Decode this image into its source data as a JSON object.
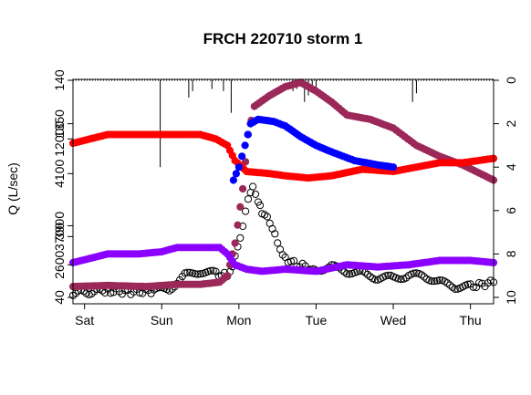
{
  "chart_data": {
    "type": "scatter",
    "title": "FRCH 220710 storm 1",
    "ylabel": "Q (L/sec)",
    "x_tick_labels": [
      "Sat",
      "Sun",
      "Mon",
      "Tue",
      "Wed",
      "Thu"
    ],
    "x_tick_days": [
      0,
      1,
      2,
      3,
      4,
      5
    ],
    "xlim_days": [
      -0.15,
      5.3
    ],
    "left_y_tick_labels": [
      "40",
      "2600",
      "3700",
      "3900",
      "4100",
      "12000",
      "1350",
      "140"
    ],
    "left_y_tick_heights": [
      0,
      1.5,
      2.8,
      3.3,
      5.7,
      7.3,
      8.0,
      10
    ],
    "left_ylim": [
      0,
      10
    ],
    "right_axis_label": "",
    "right_y_tick_labels": [
      "0",
      "2",
      "4",
      "6",
      "8",
      "10"
    ],
    "right_ylim": [
      10,
      0
    ],
    "grid": false,
    "series": [
      {
        "color": "#000000",
        "filled": false,
        "points": [
          [
            -0.15,
            0.2
          ],
          [
            0.3,
            0.3
          ],
          [
            0.6,
            0.25
          ],
          [
            0.9,
            0.3
          ],
          [
            1.1,
            0.4
          ],
          [
            1.3,
            1.0
          ],
          [
            1.5,
            1.2
          ],
          [
            1.7,
            1.1
          ],
          [
            1.85,
            1.0
          ],
          [
            1.95,
            1.8
          ],
          [
            2.05,
            3.2
          ],
          [
            2.12,
            4.5
          ],
          [
            2.18,
            5.0
          ],
          [
            2.25,
            4.5
          ],
          [
            2.3,
            3.8
          ],
          [
            2.4,
            3.5
          ],
          [
            2.5,
            2.6
          ],
          [
            2.6,
            1.8
          ],
          [
            2.75,
            1.5
          ],
          [
            2.9,
            1.4
          ],
          [
            3.0,
            1.3
          ],
          [
            3.2,
            1.4
          ],
          [
            3.4,
            1.2
          ],
          [
            3.6,
            1.1
          ],
          [
            3.8,
            0.9
          ],
          [
            4.0,
            0.9
          ],
          [
            4.2,
            1.0
          ],
          [
            4.4,
            1.0
          ],
          [
            4.6,
            0.7
          ],
          [
            4.8,
            0.5
          ],
          [
            5.0,
            0.5
          ],
          [
            5.3,
            0.7
          ]
        ]
      },
      {
        "color": "#9b2858",
        "filled": true,
        "points": [
          [
            -0.15,
            0.5
          ],
          [
            0.3,
            0.55
          ],
          [
            0.8,
            0.5
          ],
          [
            1.2,
            0.6
          ],
          [
            1.5,
            0.6
          ],
          [
            1.75,
            0.7
          ],
          [
            1.85,
            1.0
          ],
          [
            1.95,
            2.5
          ],
          [
            2.05,
            5.0
          ],
          [
            2.12,
            7.5
          ],
          [
            2.2,
            8.8
          ],
          [
            2.4,
            9.3
          ],
          [
            2.6,
            9.7
          ],
          [
            2.8,
            9.9
          ],
          [
            3.0,
            9.5
          ],
          [
            3.2,
            9.0
          ],
          [
            3.4,
            8.4
          ],
          [
            3.7,
            8.2
          ],
          [
            4.0,
            7.8
          ],
          [
            4.3,
            7.0
          ],
          [
            4.6,
            6.5
          ],
          [
            4.9,
            6.1
          ],
          [
            5.3,
            5.4
          ]
        ]
      },
      {
        "color": "#ff0000",
        "filled": true,
        "points": [
          [
            -0.15,
            7.1
          ],
          [
            0.3,
            7.5
          ],
          [
            0.7,
            7.5
          ],
          [
            1.2,
            7.5
          ],
          [
            1.5,
            7.5
          ],
          [
            1.7,
            7.3
          ],
          [
            1.85,
            7.0
          ],
          [
            1.95,
            6.3
          ],
          [
            2.1,
            5.8
          ],
          [
            2.4,
            5.7
          ],
          [
            2.6,
            5.6
          ],
          [
            2.9,
            5.5
          ],
          [
            3.2,
            5.6
          ],
          [
            3.6,
            5.9
          ],
          [
            4.0,
            5.8
          ],
          [
            4.3,
            6.0
          ],
          [
            4.6,
            6.2
          ],
          [
            4.9,
            6.2
          ],
          [
            5.3,
            6.4
          ]
        ]
      },
      {
        "color": "#0000ff",
        "filled": true,
        "points": [
          [
            1.93,
            5.4
          ],
          [
            2.0,
            6.0
          ],
          [
            2.08,
            7.0
          ],
          [
            2.15,
            8.0
          ],
          [
            2.25,
            8.2
          ],
          [
            2.45,
            8.1
          ],
          [
            2.6,
            7.9
          ],
          [
            2.8,
            7.4
          ],
          [
            3.0,
            7.0
          ],
          [
            3.2,
            6.7
          ],
          [
            3.5,
            6.3
          ],
          [
            3.8,
            6.1
          ],
          [
            4.0,
            6.0
          ]
        ]
      },
      {
        "color": "#8b00ff",
        "filled": true,
        "points": [
          [
            -0.15,
            1.6
          ],
          [
            0.3,
            2.0
          ],
          [
            0.7,
            2.0
          ],
          [
            1.0,
            2.1
          ],
          [
            1.2,
            2.3
          ],
          [
            1.5,
            2.3
          ],
          [
            1.75,
            2.3
          ],
          [
            1.85,
            2.0
          ],
          [
            1.95,
            1.5
          ],
          [
            2.1,
            1.3
          ],
          [
            2.3,
            1.2
          ],
          [
            2.6,
            1.3
          ],
          [
            3.0,
            1.2
          ],
          [
            3.4,
            1.5
          ],
          [
            3.8,
            1.4
          ],
          [
            4.2,
            1.5
          ],
          [
            4.6,
            1.7
          ],
          [
            5.0,
            1.7
          ],
          [
            5.3,
            1.6
          ]
        ]
      }
    ],
    "precip_bars": [
      [
        0.98,
        4.0
      ],
      [
        1.35,
        0.8
      ],
      [
        1.4,
        0.5
      ],
      [
        1.65,
        0.4
      ],
      [
        1.8,
        0.5
      ],
      [
        1.9,
        1.5
      ],
      [
        2.7,
        0.5
      ],
      [
        2.75,
        0.4
      ],
      [
        2.85,
        1.0
      ],
      [
        2.9,
        0.7
      ],
      [
        2.95,
        0.3
      ],
      [
        3.0,
        0.5
      ],
      [
        4.25,
        1.0
      ],
      [
        4.3,
        0.6
      ]
    ]
  }
}
